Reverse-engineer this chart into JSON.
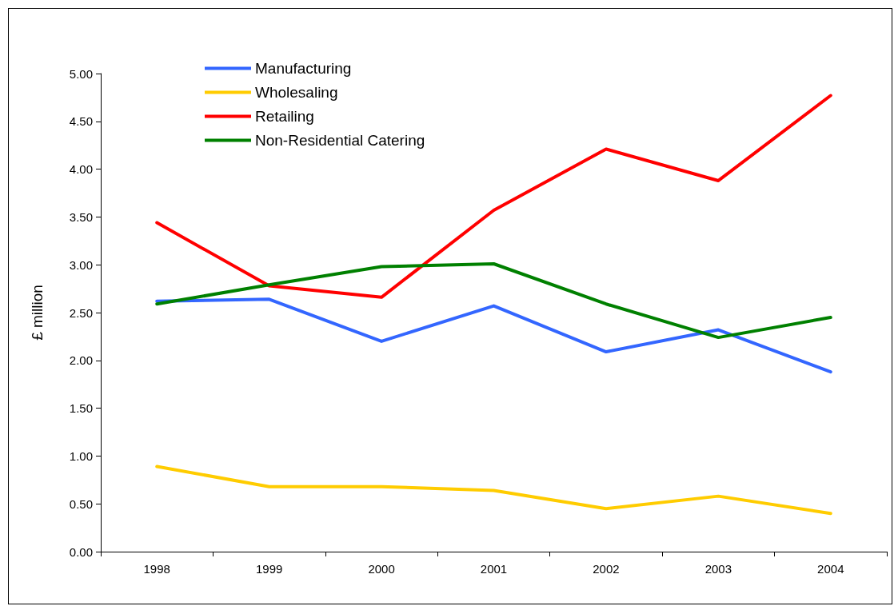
{
  "chart_data": {
    "type": "line",
    "ylabel": "£ million",
    "categories": [
      "1998",
      "1999",
      "2000",
      "2001",
      "2002",
      "2003",
      "2004"
    ],
    "series": [
      {
        "name": "Manufacturing",
        "color": "#3366ff",
        "values": [
          2.62,
          2.64,
          2.2,
          2.57,
          2.09,
          2.32,
          1.88
        ]
      },
      {
        "name": "Wholesaling",
        "color": "#ffcc00",
        "values": [
          0.89,
          0.68,
          0.68,
          0.64,
          0.45,
          0.58,
          0.4
        ]
      },
      {
        "name": "Retailing",
        "color": "#ff0000",
        "values": [
          3.44,
          2.78,
          2.66,
          3.57,
          4.21,
          3.88,
          4.77
        ]
      },
      {
        "name": "Non-Residential Catering",
        "color": "#008000",
        "values": [
          2.59,
          2.79,
          2.98,
          3.01,
          2.59,
          2.24,
          2.45
        ]
      }
    ],
    "ylim": [
      0,
      5
    ],
    "yticks": [
      {
        "value": 0,
        "label": "0.00"
      },
      {
        "value": 0.5,
        "label": "0.50"
      },
      {
        "value": 1,
        "label": "1.00"
      },
      {
        "value": 1.5,
        "label": "1.50"
      },
      {
        "value": 2,
        "label": "2.00"
      },
      {
        "value": 2.5,
        "label": "2.50"
      },
      {
        "value": 3,
        "label": "3.00"
      },
      {
        "value": 3.5,
        "label": "3.50"
      },
      {
        "value": 4,
        "label": "4.00"
      },
      {
        "value": 4.5,
        "label": "4.50"
      },
      {
        "value": 5,
        "label": "5.00"
      }
    ],
    "grid": false,
    "legend": "top left",
    "marker": "none",
    "line_style": "solid"
  }
}
